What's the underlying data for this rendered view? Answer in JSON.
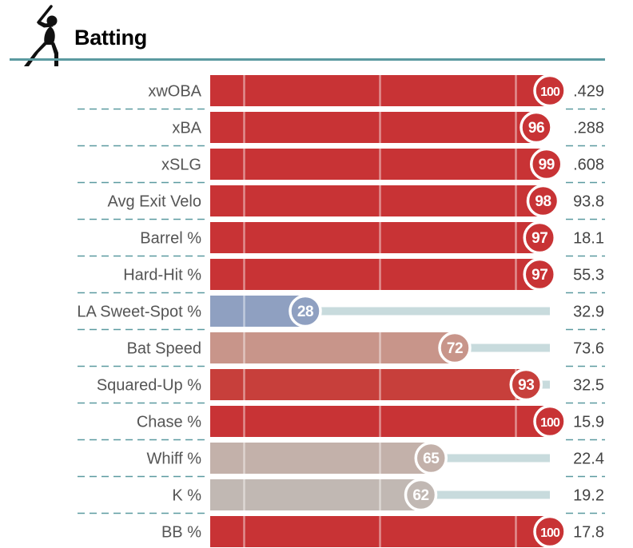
{
  "section": {
    "title": "Batting",
    "logo_icon": "baseball-batter-icon"
  },
  "colors": {
    "header_rule": "#5b9aa0",
    "divider_dash": "#5b9aa0",
    "track": "#c8dbdd",
    "label_text": "#555555",
    "value_text": "#444444"
  },
  "chart_data": {
    "type": "bar",
    "orientation": "horizontal",
    "title": "Batting",
    "xlim": [
      0,
      100
    ],
    "categories": [
      "xwOBA",
      "xBA",
      "xSLG",
      "Avg Exit Velo",
      "Barrel %",
      "Hard-Hit %",
      "LA Sweet-Spot %",
      "Bat Speed",
      "Squared-Up %",
      "Chase %",
      "Whiff %",
      "K %",
      "BB %"
    ],
    "percentiles": [
      100,
      96,
      99,
      98,
      97,
      97,
      28,
      72,
      93,
      100,
      65,
      62,
      100
    ],
    "values": [
      ".429",
      ".288",
      ".608",
      "93.8",
      "18.1",
      "55.3",
      "32.9",
      "73.6",
      "32.5",
      "15.9",
      "22.4",
      "19.2",
      "17.8"
    ],
    "bar_colors": [
      "#c83335",
      "#c83335",
      "#c83335",
      "#c83335",
      "#c83335",
      "#c83335",
      "#8fa0c1",
      "#c8958a",
      "#c73f3b",
      "#c83335",
      "#c3b1aa",
      "#c1b8b3",
      "#c83335"
    ],
    "reference_lines": [
      10,
      50,
      90
    ],
    "grid": false,
    "legend": "none"
  }
}
